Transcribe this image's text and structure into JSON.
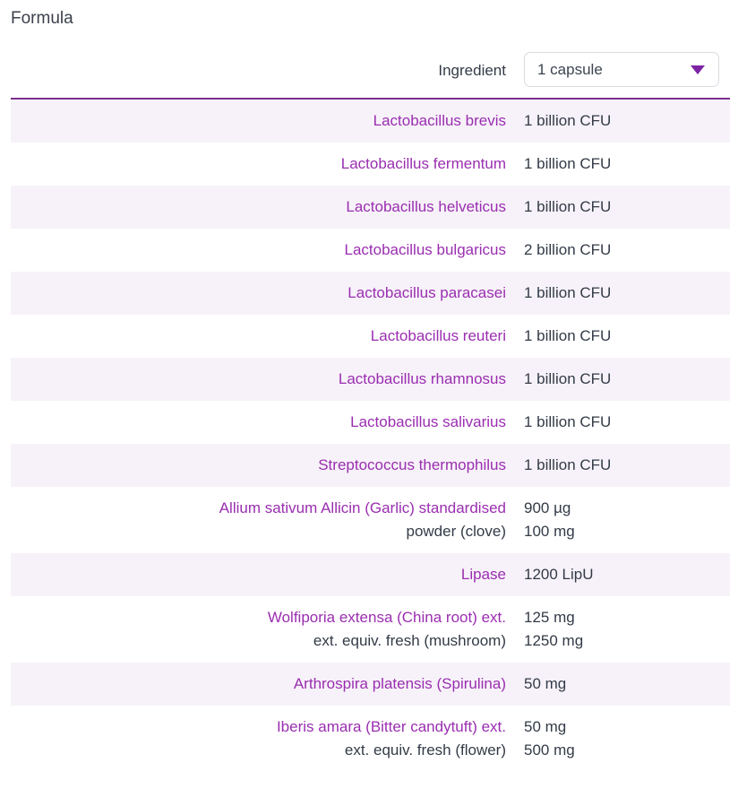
{
  "page": {
    "title": "Formula"
  },
  "table": {
    "header": {
      "ingredient_label": "Ingredient",
      "serving_selector": {
        "value": "1 capsule"
      }
    },
    "rows": [
      {
        "name": "Lactobacillus brevis",
        "sub": "",
        "amounts": [
          "1 billion CFU"
        ]
      },
      {
        "name": "Lactobacillus fermentum",
        "sub": "",
        "amounts": [
          "1 billion CFU"
        ]
      },
      {
        "name": "Lactobacillus helveticus",
        "sub": "",
        "amounts": [
          "1 billion CFU"
        ]
      },
      {
        "name": "Lactobacillus bulgaricus",
        "sub": "",
        "amounts": [
          "2 billion CFU"
        ]
      },
      {
        "name": "Lactobacillus paracasei",
        "sub": "",
        "amounts": [
          "1 billion CFU"
        ]
      },
      {
        "name": "Lactobacillus reuteri",
        "sub": "",
        "amounts": [
          "1 billion CFU"
        ]
      },
      {
        "name": "Lactobacillus rhamnosus",
        "sub": "",
        "amounts": [
          "1 billion CFU"
        ]
      },
      {
        "name": "Lactobacillus salivarius",
        "sub": "",
        "amounts": [
          "1 billion CFU"
        ]
      },
      {
        "name": "Streptococcus thermophilus",
        "sub": "",
        "amounts": [
          "1 billion CFU"
        ]
      },
      {
        "name": "Allium sativum Allicin (Garlic) standardised",
        "sub": "powder (clove)",
        "amounts": [
          "900 µg",
          "100 mg"
        ]
      },
      {
        "name": "Lipase",
        "sub": "",
        "amounts": [
          "1200 LipU"
        ]
      },
      {
        "name": "Wolfiporia extensa (China root) ext.",
        "sub": "ext. equiv. fresh (mushroom)",
        "amounts": [
          "125 mg",
          "1250 mg"
        ]
      },
      {
        "name": "Arthrospira platensis (Spirulina)",
        "sub": "",
        "amounts": [
          "50 mg"
        ]
      },
      {
        "name": "Iberis amara (Bitter candytuft) ext.",
        "sub": "ext. equiv. fresh (flower)",
        "amounts": [
          "50 mg",
          "500 mg"
        ]
      }
    ],
    "colors": {
      "ingredient_link": "#9a2eb0",
      "caret": "#7c24a3",
      "divider": "#7c2e8f",
      "row_alternate_bg": "#f7f2f9",
      "text": "#333b47"
    }
  }
}
